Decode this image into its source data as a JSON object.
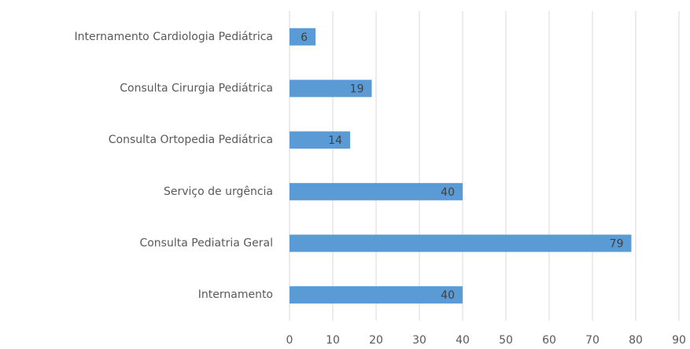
{
  "chart_data": {
    "type": "barh",
    "categories": [
      "Internamento Cardiologia Pediátrica",
      "Consulta Cirurgia Pediátrica",
      "Consulta Ortopedia Pediátrica",
      "Serviço de urgência",
      "Consulta Pediatria Geral",
      "Internamento"
    ],
    "values": [
      6,
      19,
      14,
      40,
      79,
      40
    ],
    "color": "#5b9bd5",
    "xlim": [
      0,
      90
    ],
    "xticks": [
      0,
      10,
      20,
      30,
      40,
      50,
      60,
      70,
      80,
      90
    ],
    "grid": true
  }
}
